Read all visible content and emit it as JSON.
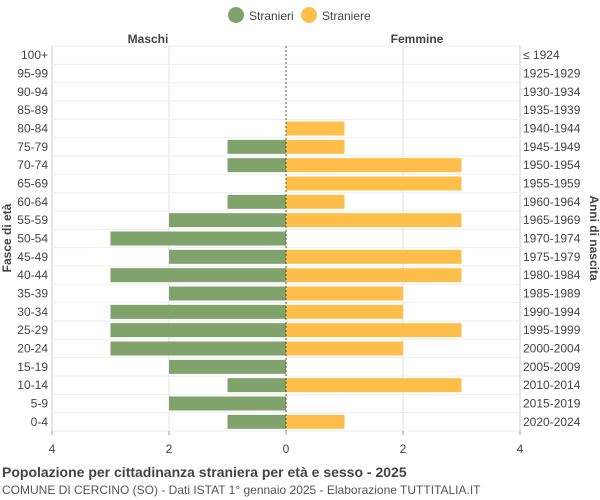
{
  "chart_data": {
    "type": "bar",
    "orientation": "horizontal-pyramid",
    "legend": {
      "placement": "top-center",
      "items": [
        "Stranieri",
        "Straniere"
      ]
    },
    "series": [
      {
        "name": "Stranieri",
        "side": "left",
        "color": "#7fa36b",
        "values": [
          0,
          0,
          0,
          0,
          0,
          1,
          1,
          0,
          1,
          2,
          3,
          2,
          3,
          2,
          3,
          3,
          3,
          2,
          1,
          2,
          1
        ]
      },
      {
        "name": "Straniere",
        "side": "right",
        "color": "#fdbf4a",
        "values": [
          0,
          0,
          0,
          0,
          1,
          1,
          3,
          3,
          1,
          3,
          0,
          3,
          3,
          2,
          2,
          3,
          2,
          0,
          3,
          0,
          1
        ]
      }
    ],
    "age_groups": [
      "100+",
      "95-99",
      "90-94",
      "85-89",
      "80-84",
      "75-79",
      "70-74",
      "65-69",
      "60-64",
      "55-59",
      "50-54",
      "45-49",
      "40-44",
      "35-39",
      "30-34",
      "25-29",
      "20-24",
      "15-19",
      "10-14",
      "5-9",
      "0-4"
    ],
    "birth_years": [
      "≤ 1924",
      "1925-1929",
      "1930-1934",
      "1935-1939",
      "1940-1944",
      "1945-1949",
      "1950-1954",
      "1955-1959",
      "1960-1964",
      "1965-1969",
      "1970-1974",
      "1975-1979",
      "1980-1984",
      "1985-1989",
      "1990-1994",
      "1995-1999",
      "2000-2004",
      "2005-2009",
      "2010-2014",
      "2015-2019",
      "2020-2024"
    ],
    "x_ticks_left": [
      "4",
      "2",
      "0"
    ],
    "x_ticks_right": [
      "2",
      "4"
    ],
    "xlim": [
      -4,
      4
    ],
    "left_header": "Maschi",
    "right_header": "Femmine",
    "ylabel_left": "Fasce di età",
    "ylabel_right": "Anni di nascita",
    "title": "Popolazione per cittadinanza straniera per età e sesso - 2025",
    "subtitle": "COMUNE DI CERCINO (SO) - Dati ISTAT 1° gennaio 2025 - Elaborazione TUTTITALIA.IT",
    "grid": true
  }
}
